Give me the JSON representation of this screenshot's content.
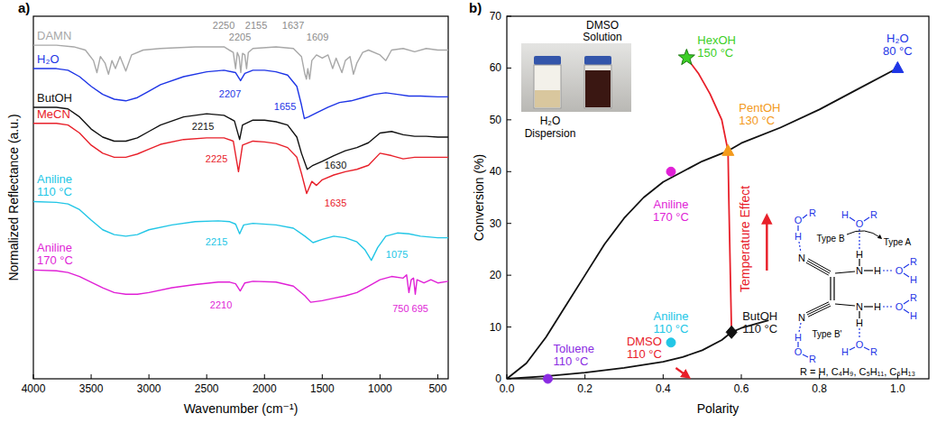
{
  "chart_data": [
    {
      "type": "line",
      "title": "a)",
      "xlabel": "Wavenumber (cm⁻¹)",
      "ylabel": "Normalized Reflectance (a.u.)",
      "xlim": [
        4000,
        410
      ],
      "ylim": [
        0,
        45
      ],
      "xticks": [
        4000,
        3500,
        3000,
        2500,
        2000,
        1500,
        1000,
        500
      ],
      "tick_labels": "x",
      "series": [
        {
          "name": "DAMN",
          "color": "#a8a8a8",
          "x": [
            4000,
            3800,
            3650,
            3550,
            3480,
            3450,
            3420,
            3380,
            3350,
            3320,
            3290,
            3250,
            3200,
            3150,
            3050,
            2900,
            2600,
            2350,
            2270,
            2250,
            2235,
            2220,
            2205,
            2190,
            2170,
            2155,
            2140,
            2100,
            1900,
            1750,
            1680,
            1650,
            1637,
            1625,
            1609,
            1590,
            1550,
            1500,
            1450,
            1410,
            1380,
            1330,
            1300,
            1260,
            1230,
            1200,
            1150,
            1100,
            1000,
            950,
            900,
            800,
            700,
            600,
            500,
            410
          ],
          "values": [
            41.4,
            41.4,
            41.2,
            40.8,
            39.5,
            38.0,
            40.0,
            39.2,
            37.8,
            39.5,
            38.5,
            40.0,
            38.2,
            40.2,
            40.8,
            41.0,
            41.2,
            41.2,
            40.5,
            38.5,
            40.5,
            40.0,
            38.0,
            40.4,
            40.2,
            38.5,
            40.5,
            41.0,
            41.2,
            41.0,
            40.0,
            37.8,
            37.2,
            38.5,
            37.2,
            39.5,
            40.2,
            39.8,
            40.2,
            38.5,
            39.8,
            38.0,
            39.5,
            40.0,
            37.8,
            39.2,
            40.5,
            40.8,
            40.2,
            39.5,
            40.8,
            41.0,
            40.6,
            41.0,
            40.8,
            40.8
          ]
        },
        {
          "name": "H₂O",
          "color": "#1e35e6",
          "x": [
            4000,
            3800,
            3700,
            3600,
            3500,
            3400,
            3300,
            3200,
            3100,
            3000,
            2900,
            2700,
            2500,
            2350,
            2250,
            2207,
            2170,
            2100,
            2000,
            1900,
            1800,
            1720,
            1680,
            1655,
            1620,
            1550,
            1450,
            1350,
            1250,
            1150,
            1050,
            950,
            850,
            750,
            650,
            500,
            410
          ],
          "values": [
            38.5,
            38.5,
            38.3,
            37.5,
            36.3,
            35.3,
            34.7,
            34.5,
            34.9,
            35.7,
            36.5,
            37.5,
            38.1,
            38.3,
            38.0,
            37.0,
            37.9,
            38.3,
            38.3,
            38.1,
            37.7,
            36.3,
            34.0,
            32.3,
            32.5,
            33.0,
            33.7,
            34.3,
            34.5,
            34.9,
            35.3,
            35.5,
            35.3,
            35.1,
            35.1,
            35.0,
            35.0
          ]
        },
        {
          "name": "ButOH",
          "color": "#111111",
          "x": [
            4000,
            3800,
            3700,
            3600,
            3500,
            3400,
            3300,
            3200,
            3100,
            3000,
            2900,
            2700,
            2500,
            2350,
            2260,
            2215,
            2190,
            2100,
            2000,
            1900,
            1800,
            1720,
            1680,
            1630,
            1580,
            1500,
            1400,
            1300,
            1200,
            1100,
            1000,
            900,
            800,
            700,
            600,
            500,
            410
          ],
          "values": [
            33.7,
            33.7,
            33.5,
            32.5,
            31.0,
            30.0,
            29.5,
            29.5,
            29.9,
            30.7,
            31.5,
            32.5,
            32.9,
            32.7,
            32.0,
            29.7,
            31.5,
            32.1,
            32.1,
            31.9,
            31.5,
            30.0,
            28.0,
            26.0,
            26.5,
            27.0,
            27.7,
            28.3,
            28.7,
            29.3,
            30.5,
            30.7,
            30.3,
            30.1,
            30.1,
            30.0,
            30.0
          ]
        },
        {
          "name": "MeCN",
          "color": "#e8202a",
          "x": [
            4000,
            3800,
            3700,
            3600,
            3500,
            3400,
            3300,
            3200,
            3100,
            3000,
            2900,
            2700,
            2500,
            2350,
            2270,
            2225,
            2190,
            2100,
            2000,
            1900,
            1800,
            1720,
            1680,
            1635,
            1590,
            1550,
            1500,
            1400,
            1300,
            1200,
            1100,
            1000,
            900,
            800,
            700,
            600,
            500,
            410
          ],
          "values": [
            31.7,
            31.7,
            31.5,
            30.5,
            29.0,
            28.0,
            27.5,
            27.5,
            27.9,
            28.5,
            29.1,
            29.7,
            29.9,
            29.9,
            29.5,
            25.7,
            29.0,
            29.5,
            29.4,
            29.2,
            28.7,
            27.5,
            25.5,
            23.0,
            24.5,
            24.0,
            24.7,
            25.3,
            25.7,
            26.0,
            26.5,
            28.0,
            27.7,
            27.3,
            27.5,
            27.5,
            27.5,
            27.5
          ]
        },
        {
          "name": "Aniline 110 °C",
          "color": "#22c6e6",
          "x": [
            4000,
            3800,
            3700,
            3600,
            3500,
            3400,
            3300,
            3200,
            3100,
            3000,
            2800,
            2600,
            2400,
            2300,
            2250,
            2215,
            2180,
            2100,
            1900,
            1750,
            1650,
            1580,
            1500,
            1400,
            1300,
            1200,
            1130,
            1075,
            1020,
            950,
            850,
            750,
            650,
            500,
            410
          ],
          "values": [
            22.0,
            21.9,
            21.7,
            21.0,
            19.7,
            18.5,
            17.9,
            17.7,
            17.9,
            18.5,
            19.1,
            19.5,
            19.6,
            19.5,
            19.2,
            18.0,
            19.1,
            19.3,
            19.1,
            18.7,
            17.7,
            16.9,
            17.3,
            17.7,
            17.5,
            17.0,
            16.0,
            14.7,
            16.3,
            17.7,
            18.1,
            18.0,
            17.7,
            17.5,
            17.5
          ]
        },
        {
          "name": "Aniline 170 °C",
          "color": "#e01fd6",
          "x": [
            4000,
            3800,
            3700,
            3600,
            3500,
            3400,
            3300,
            3200,
            3100,
            3000,
            2800,
            2600,
            2400,
            2300,
            2250,
            2210,
            2170,
            2100,
            1900,
            1750,
            1650,
            1600,
            1500,
            1400,
            1300,
            1200,
            1100,
            1000,
            900,
            800,
            770,
            750,
            730,
            710,
            695,
            680,
            620,
            560,
            500,
            410
          ],
          "values": [
            13.5,
            13.4,
            13.2,
            12.7,
            12.0,
            11.3,
            10.7,
            10.5,
            10.5,
            10.7,
            11.3,
            11.7,
            12.0,
            12.0,
            11.8,
            10.9,
            11.9,
            12.1,
            12.0,
            11.5,
            10.3,
            9.5,
            9.7,
            10.0,
            10.3,
            10.7,
            11.5,
            12.3,
            12.7,
            12.5,
            12.9,
            10.7,
            12.3,
            12.5,
            10.5,
            12.3,
            11.9,
            12.3,
            11.9,
            12.1
          ]
        }
      ],
      "annotations": [
        {
          "text": "2250",
          "x": 2353,
          "y": 43.9,
          "color": "#8c8c8c"
        },
        {
          "text": "2205",
          "x": 2212,
          "y": 42.4,
          "color": "#8c8c8c"
        },
        {
          "text": "2155",
          "x": 2072,
          "y": 43.9,
          "color": "#8c8c8c"
        },
        {
          "text": "1637",
          "x": 1752,
          "y": 43.9,
          "color": "#8c8c8c"
        },
        {
          "text": "1609",
          "x": 1541,
          "y": 42.4,
          "color": "#8c8c8c"
        },
        {
          "text": "2207",
          "x": 2298,
          "y": 35.4,
          "color": "#1e35e6"
        },
        {
          "text": "1655",
          "x": 1822,
          "y": 33.8,
          "color": "#1e35e6"
        },
        {
          "text": "2215",
          "x": 2532,
          "y": 31.3,
          "color": "#111111"
        },
        {
          "text": "1630",
          "x": 1385,
          "y": 26.5,
          "color": "#111111"
        },
        {
          "text": "2225",
          "x": 2415,
          "y": 27.3,
          "color": "#e8202a"
        },
        {
          "text": "1635",
          "x": 1385,
          "y": 21.8,
          "color": "#e8202a"
        },
        {
          "text": "2215",
          "x": 2415,
          "y": 17.0,
          "color": "#22c6e6"
        },
        {
          "text": "1075",
          "x": 854,
          "y": 15.4,
          "color": "#22c6e6"
        },
        {
          "text": "2210",
          "x": 2376,
          "y": 9.2,
          "color": "#e01fd6"
        },
        {
          "text": "750 695",
          "x": 737,
          "y": 8.7,
          "color": "#e01fd6"
        }
      ]
    },
    {
      "type": "scatter",
      "title": "b)",
      "xlabel": "Polarity",
      "ylabel": "Conversion (%)",
      "xlim": [
        0,
        1.08
      ],
      "ylim": [
        0,
        70
      ],
      "xticks": [
        {
          "value": 0,
          "label": "0.0"
        },
        0.2,
        0.4,
        0.6,
        0.8,
        {
          "value": 1,
          "label": "1.0"
        }
      ],
      "yticks": [
        0,
        10,
        20,
        30,
        40,
        50,
        60,
        70
      ],
      "series": [
        {
          "name": "H₂O 80 °C",
          "type": "scatter",
          "marker": "triangle",
          "color": "#1e35e6",
          "x": [
            1.0
          ],
          "values": [
            60
          ]
        },
        {
          "name": "HexOH 150 °C",
          "type": "scatter",
          "marker": "star",
          "color": "#3ccf26",
          "x": [
            0.46
          ],
          "values": [
            62
          ]
        },
        {
          "name": "PentOH 130 °C",
          "type": "scatter",
          "marker": "triangle",
          "color": "#f39a1c",
          "x": [
            0.566
          ],
          "values": [
            44
          ]
        },
        {
          "name": "ButOH 110 °C",
          "type": "scatter",
          "marker": "diamond",
          "color": "#111111",
          "x": [
            0.575
          ],
          "values": [
            9
          ]
        },
        {
          "name": "Aniline 170 °C",
          "type": "scatter",
          "marker": "circle",
          "color": "#e01fd6",
          "x": [
            0.42
          ],
          "values": [
            40
          ]
        },
        {
          "name": "Aniline 110 °C",
          "type": "scatter",
          "marker": "circle",
          "color": "#22c6e6",
          "x": [
            0.42
          ],
          "values": [
            7
          ]
        },
        {
          "name": "Toluene 110 °C",
          "type": "scatter",
          "marker": "circle",
          "color": "#8a2be2",
          "x": [
            0.105
          ],
          "values": [
            0
          ]
        },
        {
          "name": "DMSO 110 °C",
          "type": "scatter",
          "marker": "arrow",
          "color": "#e8202a",
          "x": [
            0.444
          ],
          "values": [
            0
          ]
        },
        {
          "type": "line",
          "color": "#111111",
          "line_style": "solid",
          "x": [
            0,
            0.05,
            0.1,
            0.15,
            0.2,
            0.25,
            0.3,
            0.35,
            0.4,
            0.45,
            0.5,
            0.566,
            0.6,
            0.7,
            0.8,
            0.9,
            1.0
          ],
          "values": [
            0,
            3,
            8,
            14,
            20,
            26,
            31,
            35,
            38,
            40,
            42,
            44,
            45.5,
            48.5,
            52,
            56,
            60
          ]
        },
        {
          "type": "line",
          "color": "#111111",
          "line_style": "solid",
          "x": [
            0,
            0.1,
            0.2,
            0.3,
            0.4,
            0.45,
            0.5,
            0.55,
            0.575,
            0.6,
            0.67
          ],
          "values": [
            0,
            0.5,
            1.2,
            2.1,
            3.3,
            4.2,
            5.5,
            7.5,
            9,
            9.8,
            11.3
          ]
        },
        {
          "type": "line",
          "color": "#e8202a",
          "line_style": "solid",
          "x": [
            0.575,
            0.572,
            0.568,
            0.566,
            0.55,
            0.52,
            0.49,
            0.46
          ],
          "values": [
            9,
            20,
            35,
            44,
            50,
            55,
            59,
            62
          ]
        }
      ],
      "annotations": [
        {
          "text": "Temperature Effect",
          "x": 0.61,
          "y": 27,
          "color": "#e8202a"
        }
      ],
      "inset_photo": {
        "labels": [
          "H₂O Dispersion",
          "DMSO Solution"
        ]
      },
      "inset_structure": {
        "atoms": [
          "N",
          "N",
          "N",
          "H",
          "H",
          "N",
          "H",
          "H",
          "O",
          "H",
          "R",
          "O",
          "R",
          "H",
          "O",
          "R",
          "H",
          "O",
          "R",
          "H",
          "O",
          "R",
          "H",
          "H",
          "O",
          "R"
        ],
        "type_labels": [
          "Type B",
          "Type A",
          "Type B'"
        ],
        "caption": "R = H, C₄H₉, C₅H₁₁, C₆H₁₃"
      }
    }
  ]
}
